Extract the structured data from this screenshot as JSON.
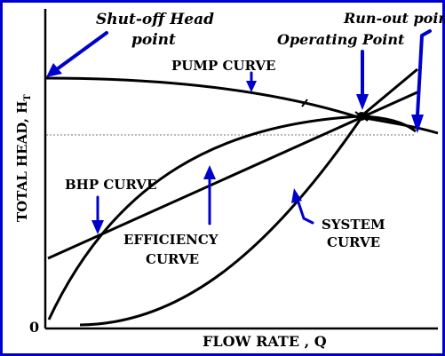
{
  "diagram": {
    "labels": {
      "shutoff_line1": "Shut-off Head",
      "shutoff_line2": "point",
      "runout": "Run-out point",
      "operating": "Operating Point",
      "pump": "PUMP CURVE",
      "yaxis": "TOTAL HEAD, H",
      "yaxis_sub": "T",
      "bhp": "BHP CURVE",
      "eff_line1": "EFFICIENCY",
      "eff_line2": "CURVE",
      "sys_line1": "SYSTEM",
      "sys_line2": "CURVE",
      "origin": "0",
      "xaxis": "FLOW RATE , Q"
    },
    "colors": {
      "frame_border": "#0000cc",
      "annotation_arrows": "#0000cc",
      "curves": "#000000",
      "operating_head_line": "#777777"
    }
  }
}
